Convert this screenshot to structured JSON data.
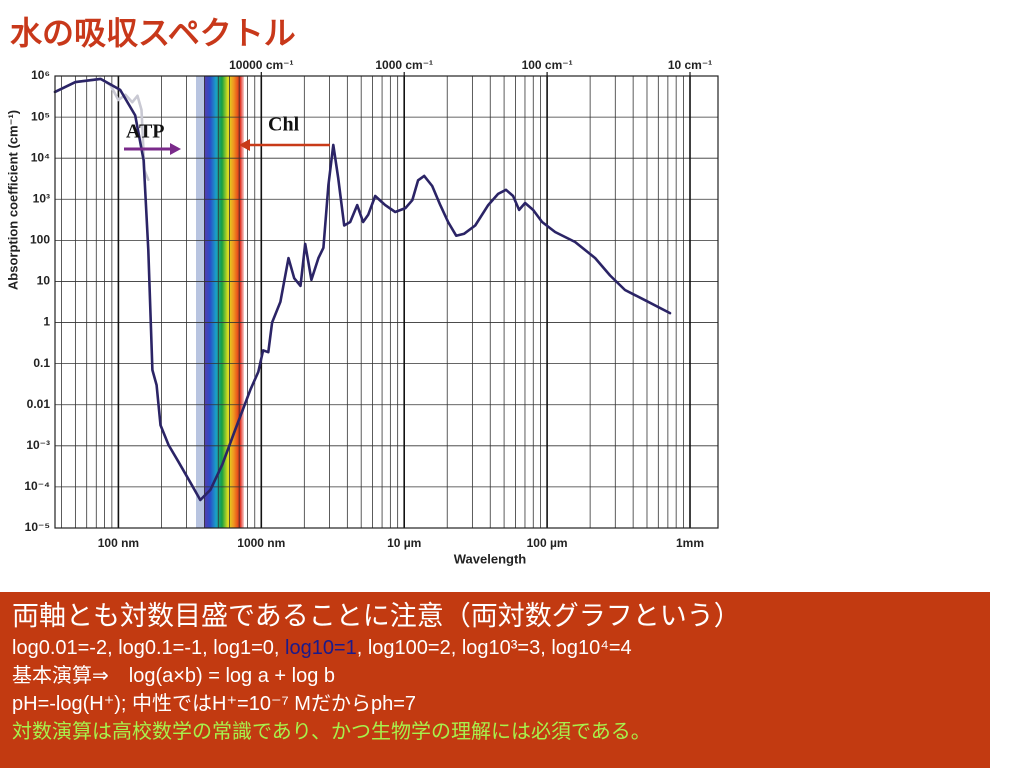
{
  "title": "水の吸収スペクトル",
  "chart_data": {
    "type": "line",
    "xlabel": "Wavelength",
    "ylabel": "Absorption coefficient (cm⁻¹)",
    "log_x": true,
    "log_y": true,
    "grid": true,
    "minor_grid": true,
    "xlim": [
      36,
      1570000
    ],
    "ylim": [
      1e-05,
      1000000
    ],
    "xticks": [
      {
        "value": 100,
        "label": "100 nm"
      },
      {
        "value": 1000,
        "label": "1000 nm"
      },
      {
        "value": 10000,
        "label": "10 µm"
      },
      {
        "value": 100000,
        "label": "100 µm"
      },
      {
        "value": 1000000,
        "label": "1mm"
      }
    ],
    "x2ticks": [
      {
        "value": 1000,
        "label": "10000 cm⁻¹"
      },
      {
        "value": 10000,
        "label": "1000 cm⁻¹"
      },
      {
        "value": 100000,
        "label": "100 cm⁻¹"
      },
      {
        "value": 1000000,
        "label": "10 cm⁻¹"
      }
    ],
    "yticks": [
      {
        "value": 1000000,
        "label": "10⁶"
      },
      {
        "value": 100000,
        "label": "10⁵"
      },
      {
        "value": 10000,
        "label": "10⁴"
      },
      {
        "value": 1000,
        "label": "10³"
      },
      100,
      10,
      1,
      0.1,
      0.01,
      {
        "value": 0.001,
        "label": "10⁻³"
      },
      {
        "value": 0.0001,
        "label": "10⁻⁴"
      },
      {
        "value": 1e-05,
        "label": "10⁻⁵"
      }
    ],
    "series": [
      {
        "color": "#c9c9d3",
        "x": [
          36,
          50,
          75,
          88,
          100,
          112,
          125,
          136,
          145,
          152,
          162
        ],
        "values": [
          410000,
          710000,
          850000,
          600000,
          260000,
          350000,
          230000,
          330000,
          150000,
          5100,
          3000
        ]
      },
      {
        "color": "#2b2466",
        "x": [
          36,
          50,
          75,
          103,
          131,
          150,
          162,
          173,
          185,
          197,
          224,
          263,
          318,
          374,
          440,
          533,
          658,
          838,
          953,
          1030,
          1120,
          1190,
          1360,
          1550,
          1700,
          1880,
          2030,
          2240,
          2510,
          2720,
          2950,
          3190,
          3450,
          3800,
          4190,
          4690,
          5160,
          5600,
          6270,
          7360,
          8650,
          10200,
          11400,
          12500,
          13800,
          15700,
          17900,
          20300,
          23100,
          26300,
          31400,
          38700,
          45400,
          51600,
          57800,
          63700,
          70200,
          79800,
          92300,
          113800,
          157000,
          217000,
          276000,
          351000,
          484000,
          724000
        ],
        "values": [
          410000,
          710000,
          850000,
          460000,
          110000,
          9000,
          59,
          0.07,
          0.03,
          0.0032,
          0.00105,
          0.00041,
          0.00013,
          4.8e-05,
          8.5e-05,
          0.00035,
          0.0025,
          0.023,
          0.063,
          0.21,
          0.19,
          1.0,
          3.2,
          37,
          12,
          7.8,
          82,
          11,
          37,
          66,
          2200,
          21000,
          3300,
          230,
          280,
          720,
          280,
          420,
          1200,
          720,
          490,
          610,
          950,
          2900,
          3700,
          2100,
          720,
          280,
          130,
          145,
          230,
          720,
          1350,
          1700,
          1200,
          550,
          810,
          550,
          280,
          160,
          91,
          37,
          14,
          6.2,
          3.5,
          1.7
        ]
      }
    ],
    "annotations": [
      "ATP",
      "Chl"
    ]
  },
  "note": {
    "heading": "両軸とも対数目盛であることに注意（両対数グラフという）",
    "line1": [
      "log0.01=-2, log0.1=-1, log1=0, ",
      "log10=1",
      ", log100=2, log10³=3, log10⁴=4"
    ],
    "line2": "基本演算⇒　log(a×b) = log a + log b",
    "line3": "pH=-log(H⁺); 中性ではH⁺=10⁻⁷ Mだからph=7",
    "line4": "対数演算は高校数学の常識であり、かつ生物学の理解には必須である。"
  }
}
